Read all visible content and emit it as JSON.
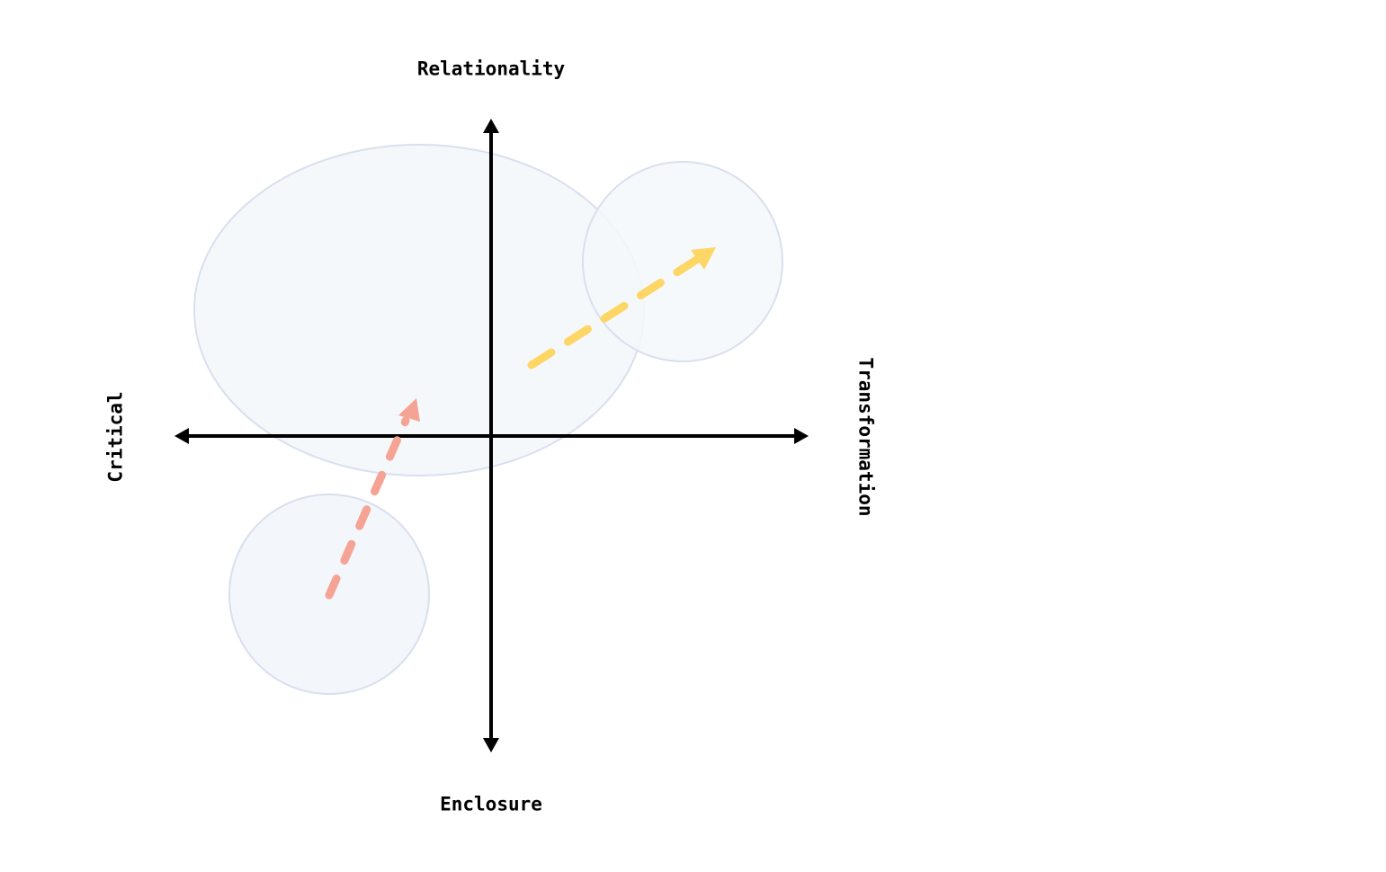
{
  "diagram": {
    "axes": {
      "top_label": "Relationality",
      "bottom_label": "Enclosure",
      "left_label": "Critical",
      "right_label": "Transformation"
    },
    "regions": [
      {
        "name": "large-ellipse-region",
        "fill": "#f4f7fa",
        "stroke": "#dadff0"
      },
      {
        "name": "upper-right-circle-region",
        "fill": "#f4f8fa",
        "stroke": "#dadff0"
      },
      {
        "name": "lower-left-circle-region",
        "fill": "#f3f6fa",
        "stroke": "#dadff0"
      }
    ],
    "arrows": [
      {
        "name": "salmon-dashed-arrow",
        "color": "#f4a394"
      },
      {
        "name": "yellow-dashed-arrow",
        "color": "#fdd665"
      }
    ],
    "axis_color": "#000000"
  }
}
